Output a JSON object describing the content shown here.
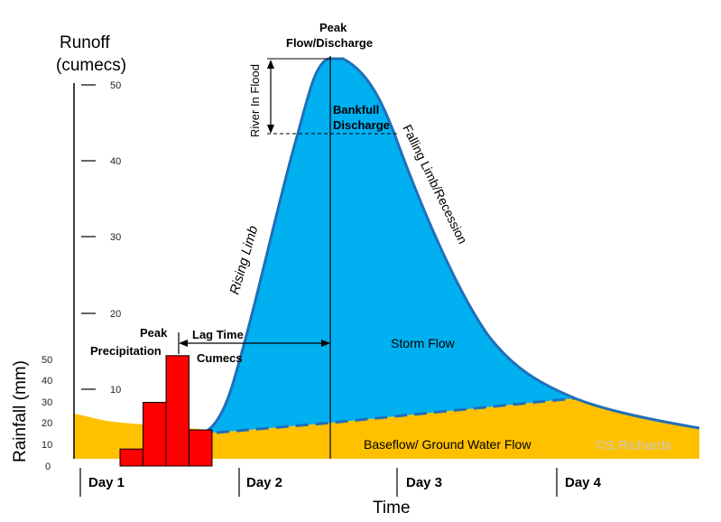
{
  "axes": {
    "runoff_label_1": "Runoff",
    "runoff_label_2": "(cumecs)",
    "rainfall_label": "Rainfall (mm)",
    "time_label": "Time",
    "runoff_ticks": [
      "50",
      "40",
      "30",
      "20",
      "10"
    ],
    "rainfall_ticks": [
      "50",
      "40",
      "30",
      "20",
      "10",
      "0"
    ],
    "days": [
      "Day 1",
      "Day 2",
      "Day 3",
      "Day 4"
    ]
  },
  "labels": {
    "peak_discharge_1": "Peak",
    "peak_discharge_2": "Flow/Discharge",
    "river_in_flood": "River In Flood",
    "bankfull_1": "Bankfull",
    "bankfull_2": "Discharge",
    "falling_limb": "Falling Limb/Recession",
    "rising_limb": "Rising Limb",
    "peak_precip_1": "Peak",
    "peak_precip_2": "Precipitation",
    "lag_time": "Lag Time",
    "cumecs": "Cumecs",
    "storm_flow": "Storm Flow",
    "baseflow": "Baseflow/ Ground Water Flow",
    "copyright": "©S.Richards"
  },
  "chart_data": {
    "type": "bar",
    "title": "",
    "series": [
      {
        "name": "Rainfall (mm)",
        "values": [
          8,
          30,
          52,
          17
        ]
      }
    ],
    "ylabel": "Rainfall (mm)",
    "ylim": [
      0,
      50
    ],
    "runoff_ylabel": "Runoff (cumecs)",
    "runoff_ylim": [
      0,
      50
    ],
    "xlabel": "Time",
    "colors": {
      "rainfall": "#ff0000",
      "storm_flow": "#00b0f0",
      "storm_outline": "#1f6fb8",
      "baseflow": "#ffc000"
    }
  }
}
